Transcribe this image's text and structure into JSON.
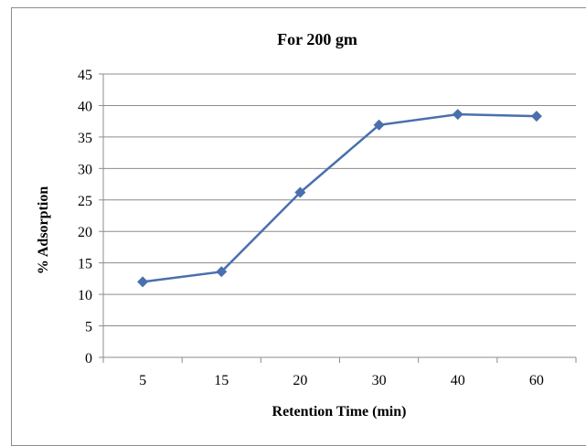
{
  "chart_data": {
    "type": "line",
    "title": "For 200 gm",
    "xlabel": "Retention Time (min)",
    "ylabel": "% Adsorption",
    "categories": [
      "5",
      "15",
      "20",
      "30",
      "40",
      "60"
    ],
    "series": [
      {
        "values": [
          12.0,
          13.6,
          26.2,
          36.9,
          38.6,
          38.3
        ]
      }
    ],
    "ylim": [
      0,
      45
    ],
    "yticks": [
      0,
      5,
      10,
      15,
      20,
      25,
      30,
      35,
      40,
      45
    ],
    "grid": true,
    "legend": "none",
    "colors": {
      "series": "#4a6fad"
    }
  }
}
